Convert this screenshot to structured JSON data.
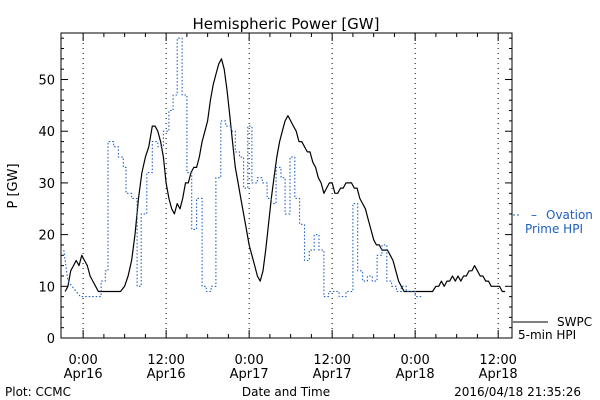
{
  "chart_data": {
    "type": "line",
    "title": "Hemispheric Power [GW]",
    "xlabel": "Date and Time",
    "ylabel": "P [GW]",
    "ylim": [
      0,
      59
    ],
    "yticks": [
      0,
      10,
      20,
      30,
      40,
      50
    ],
    "xlim": [
      -3.2,
      62
    ],
    "xticks": [
      {
        "hours": 0,
        "line1": "0:00",
        "line2": "Apr16"
      },
      {
        "hours": 12,
        "line1": "12:00",
        "line2": "Apr16"
      },
      {
        "hours": 24,
        "line1": "0:00",
        "line2": "Apr17"
      },
      {
        "hours": 36,
        "line1": "12:00",
        "line2": "Apr17"
      },
      {
        "hours": 48,
        "line1": "0:00",
        "line2": "Apr18"
      },
      {
        "hours": 60,
        "line1": "12:00",
        "line2": "Apr18"
      }
    ],
    "x_units": "hours from 2016-04-16 00:00",
    "series": [
      {
        "name": "SWPC 5-min HPI",
        "legend_line1": "SWPC",
        "legend_line2": "5-min HPI",
        "color": "#000000",
        "style": "solid",
        "points": [
          [
            -2.6,
            9
          ],
          [
            -2.2,
            10
          ],
          [
            -1.8,
            13
          ],
          [
            -1.4,
            14
          ],
          [
            -1.0,
            15
          ],
          [
            -0.6,
            14
          ],
          [
            -0.2,
            16
          ],
          [
            0.2,
            15
          ],
          [
            0.6,
            14
          ],
          [
            1.0,
            12
          ],
          [
            1.4,
            11
          ],
          [
            1.8,
            10
          ],
          [
            2.2,
            9
          ],
          [
            2.6,
            9
          ],
          [
            3.0,
            9
          ],
          [
            3.5,
            9
          ],
          [
            4.0,
            9
          ],
          [
            4.5,
            9
          ],
          [
            5.0,
            9
          ],
          [
            5.4,
            9
          ],
          [
            6.0,
            10
          ],
          [
            6.5,
            12
          ],
          [
            7.0,
            15
          ],
          [
            7.5,
            20
          ],
          [
            8.0,
            27
          ],
          [
            8.5,
            32
          ],
          [
            9.0,
            35
          ],
          [
            9.5,
            37
          ],
          [
            10.0,
            41
          ],
          [
            10.4,
            41
          ],
          [
            10.8,
            40
          ],
          [
            11.2,
            38
          ],
          [
            11.6,
            35
          ],
          [
            12.0,
            30
          ],
          [
            12.4,
            27
          ],
          [
            12.8,
            25
          ],
          [
            13.2,
            24
          ],
          [
            13.6,
            26
          ],
          [
            14.0,
            25
          ],
          [
            14.4,
            27
          ],
          [
            14.8,
            30
          ],
          [
            15.2,
            30
          ],
          [
            15.6,
            32
          ],
          [
            16.0,
            33
          ],
          [
            16.4,
            33
          ],
          [
            16.8,
            35
          ],
          [
            17.2,
            38
          ],
          [
            17.6,
            40
          ],
          [
            18.0,
            42
          ],
          [
            18.4,
            46
          ],
          [
            18.8,
            49
          ],
          [
            19.2,
            51
          ],
          [
            19.6,
            53
          ],
          [
            20.0,
            54
          ],
          [
            20.4,
            52
          ],
          [
            20.8,
            48
          ],
          [
            21.2,
            43
          ],
          [
            21.6,
            38
          ],
          [
            22.0,
            33
          ],
          [
            22.4,
            30
          ],
          [
            22.8,
            27
          ],
          [
            23.2,
            24
          ],
          [
            23.6,
            21
          ],
          [
            24.0,
            18
          ],
          [
            24.4,
            16
          ],
          [
            24.8,
            14
          ],
          [
            25.2,
            12
          ],
          [
            25.6,
            11
          ],
          [
            26.0,
            13
          ],
          [
            26.4,
            17
          ],
          [
            26.8,
            22
          ],
          [
            27.2,
            27
          ],
          [
            27.6,
            31
          ],
          [
            28.0,
            35
          ],
          [
            28.4,
            38
          ],
          [
            28.8,
            40
          ],
          [
            29.2,
            42
          ],
          [
            29.6,
            43
          ],
          [
            30.0,
            42
          ],
          [
            30.4,
            41
          ],
          [
            30.8,
            40
          ],
          [
            31.2,
            38
          ],
          [
            31.6,
            38
          ],
          [
            32.0,
            37
          ],
          [
            32.4,
            36
          ],
          [
            32.8,
            36
          ],
          [
            33.2,
            34
          ],
          [
            33.6,
            33
          ],
          [
            34.0,
            31
          ],
          [
            34.4,
            30
          ],
          [
            34.8,
            28
          ],
          [
            35.2,
            29
          ],
          [
            35.6,
            30
          ],
          [
            36.0,
            30
          ],
          [
            36.4,
            28
          ],
          [
            36.8,
            28
          ],
          [
            37.2,
            29
          ],
          [
            37.6,
            29
          ],
          [
            38.0,
            30
          ],
          [
            38.4,
            30
          ],
          [
            38.8,
            30
          ],
          [
            39.2,
            29
          ],
          [
            39.6,
            29
          ],
          [
            40.0,
            27
          ],
          [
            40.4,
            26
          ],
          [
            40.8,
            25
          ],
          [
            41.2,
            23
          ],
          [
            41.6,
            21
          ],
          [
            42.0,
            19
          ],
          [
            42.4,
            18
          ],
          [
            42.8,
            18
          ],
          [
            43.2,
            17
          ],
          [
            43.6,
            17
          ],
          [
            44.0,
            17
          ],
          [
            44.4,
            16
          ],
          [
            44.8,
            15
          ],
          [
            45.2,
            13
          ],
          [
            45.6,
            11
          ],
          [
            46.0,
            10
          ],
          [
            46.4,
            9
          ],
          [
            46.8,
            9
          ],
          [
            48.0,
            9
          ],
          [
            49.5,
            9
          ],
          [
            50.5,
            9
          ],
          [
            51.0,
            10
          ],
          [
            51.4,
            10
          ],
          [
            51.8,
            11
          ],
          [
            52.2,
            10
          ],
          [
            52.6,
            11
          ],
          [
            53.0,
            11
          ],
          [
            53.4,
            12
          ],
          [
            53.8,
            11
          ],
          [
            54.2,
            12
          ],
          [
            54.6,
            11
          ],
          [
            55.0,
            12
          ],
          [
            55.4,
            12
          ],
          [
            55.8,
            13
          ],
          [
            56.2,
            13
          ],
          [
            56.6,
            14
          ],
          [
            57.0,
            13
          ],
          [
            57.4,
            12
          ],
          [
            57.8,
            12
          ],
          [
            58.2,
            11
          ],
          [
            58.6,
            11
          ],
          [
            59.0,
            10
          ],
          [
            59.4,
            10
          ],
          [
            59.8,
            10
          ],
          [
            60.2,
            10
          ],
          [
            60.6,
            9
          ],
          [
            61.0,
            9
          ]
        ]
      },
      {
        "name": "Ovation Prime HPI",
        "legend_line1": "Ovation",
        "legend_line2": "Prime HPI",
        "color": "#2060c0",
        "style": "dotted-step",
        "points": [
          [
            -2.8,
            17
          ],
          [
            -2.2,
            11
          ],
          [
            -1.6,
            10
          ],
          [
            -1.0,
            9
          ],
          [
            -0.4,
            8
          ],
          [
            2.6,
            8
          ],
          [
            2.6,
            11
          ],
          [
            3.2,
            11
          ],
          [
            3.2,
            13
          ],
          [
            3.6,
            13
          ],
          [
            3.6,
            38
          ],
          [
            4.4,
            38
          ],
          [
            4.4,
            37
          ],
          [
            5.1,
            37
          ],
          [
            5.1,
            35
          ],
          [
            5.8,
            35
          ],
          [
            5.8,
            33
          ],
          [
            6.2,
            33
          ],
          [
            6.2,
            28
          ],
          [
            7.0,
            28
          ],
          [
            7.0,
            27
          ],
          [
            7.8,
            27
          ],
          [
            7.8,
            10
          ],
          [
            8.4,
            10
          ],
          [
            8.4,
            24
          ],
          [
            9.2,
            24
          ],
          [
            9.2,
            32
          ],
          [
            10.0,
            32
          ],
          [
            10.0,
            38
          ],
          [
            10.8,
            38
          ],
          [
            10.8,
            37
          ],
          [
            11.6,
            37
          ],
          [
            11.6,
            40
          ],
          [
            12.4,
            40
          ],
          [
            12.4,
            44
          ],
          [
            13.0,
            44
          ],
          [
            13.0,
            47
          ],
          [
            13.6,
            47
          ],
          [
            13.6,
            58
          ],
          [
            14.3,
            58
          ],
          [
            14.3,
            47
          ],
          [
            15.0,
            47
          ],
          [
            15.0,
            32
          ],
          [
            15.7,
            32
          ],
          [
            15.7,
            21
          ],
          [
            16.4,
            21
          ],
          [
            16.4,
            27
          ],
          [
            17.2,
            27
          ],
          [
            17.2,
            10
          ],
          [
            17.8,
            10
          ],
          [
            17.8,
            9
          ],
          [
            18.5,
            9
          ],
          [
            18.5,
            10
          ],
          [
            19.2,
            10
          ],
          [
            19.2,
            31
          ],
          [
            19.9,
            31
          ],
          [
            19.9,
            42
          ],
          [
            20.6,
            42
          ],
          [
            20.6,
            41
          ],
          [
            21.4,
            41
          ],
          [
            21.4,
            40
          ],
          [
            22.0,
            40
          ],
          [
            22.0,
            36
          ],
          [
            22.6,
            36
          ],
          [
            22.6,
            35
          ],
          [
            23.2,
            35
          ],
          [
            23.2,
            29
          ],
          [
            23.8,
            29
          ],
          [
            23.8,
            41
          ],
          [
            24.4,
            41
          ],
          [
            24.4,
            30
          ],
          [
            25.2,
            30
          ],
          [
            25.2,
            31
          ],
          [
            25.9,
            31
          ],
          [
            25.9,
            30
          ],
          [
            26.6,
            30
          ],
          [
            26.6,
            27
          ],
          [
            27.2,
            27
          ],
          [
            27.2,
            26
          ],
          [
            27.9,
            26
          ],
          [
            27.9,
            33
          ],
          [
            28.6,
            33
          ],
          [
            28.6,
            31
          ],
          [
            29.2,
            31
          ],
          [
            29.2,
            24
          ],
          [
            29.9,
            24
          ],
          [
            29.9,
            35
          ],
          [
            30.6,
            35
          ],
          [
            30.6,
            27
          ],
          [
            31.3,
            27
          ],
          [
            31.3,
            22
          ],
          [
            32.0,
            22
          ],
          [
            32.0,
            15
          ],
          [
            32.7,
            15
          ],
          [
            32.7,
            17
          ],
          [
            33.4,
            17
          ],
          [
            33.4,
            20
          ],
          [
            34.1,
            20
          ],
          [
            34.1,
            17
          ],
          [
            34.8,
            17
          ],
          [
            34.8,
            8
          ],
          [
            35.5,
            8
          ],
          [
            35.5,
            9
          ],
          [
            37.0,
            9
          ],
          [
            37.0,
            8
          ],
          [
            38.0,
            8
          ],
          [
            38.0,
            9
          ],
          [
            39.0,
            9
          ],
          [
            39.0,
            26
          ],
          [
            39.7,
            26
          ],
          [
            39.7,
            13
          ],
          [
            40.4,
            13
          ],
          [
            40.4,
            11
          ],
          [
            41.1,
            11
          ],
          [
            41.1,
            12
          ],
          [
            41.8,
            12
          ],
          [
            41.8,
            11
          ],
          [
            42.5,
            11
          ],
          [
            42.5,
            16
          ],
          [
            43.2,
            16
          ],
          [
            43.2,
            18
          ],
          [
            43.9,
            18
          ],
          [
            43.9,
            11
          ],
          [
            44.6,
            11
          ],
          [
            44.6,
            10
          ],
          [
            45.3,
            10
          ],
          [
            45.3,
            9
          ],
          [
            46.0,
            9
          ],
          [
            46.0,
            10
          ],
          [
            46.7,
            10
          ],
          [
            46.7,
            9
          ],
          [
            48.0,
            9
          ],
          [
            48.0,
            8
          ],
          [
            49.0,
            8
          ]
        ]
      }
    ],
    "footer_left": "Plot: CCMC",
    "footer_right": "2016/04/18 21:35:26"
  }
}
